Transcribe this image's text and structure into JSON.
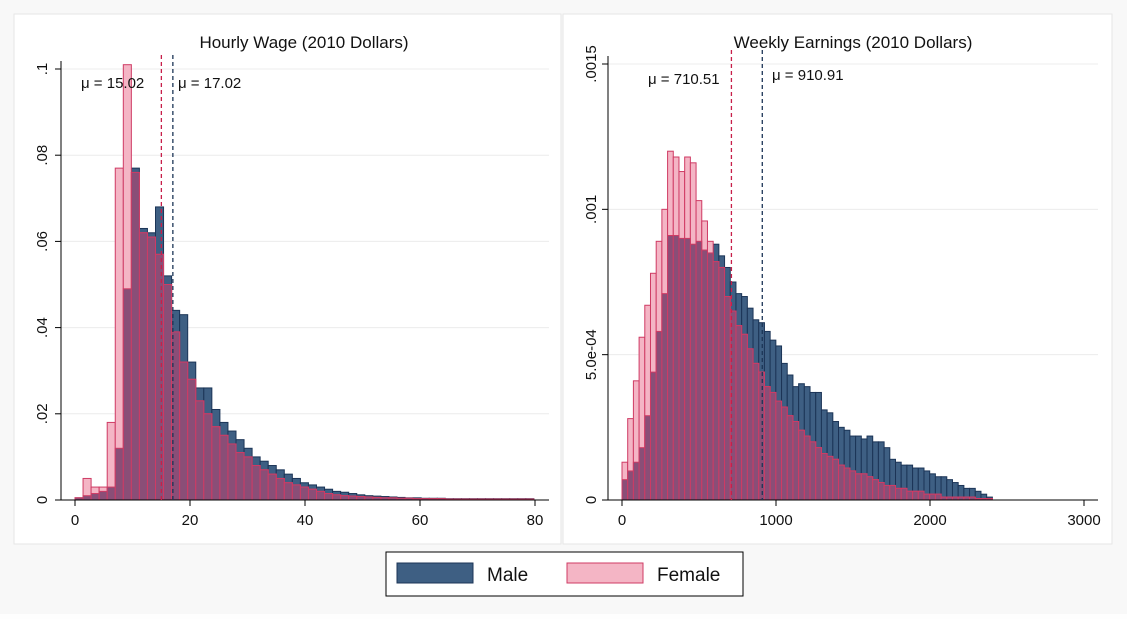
{
  "colors": {
    "male_fill": "#3e5f83",
    "male_stroke": "#1c3557",
    "female_fill": "#f4b5c5",
    "female_stroke": "#cf3b64",
    "overlap_fill": "#8a4e77",
    "male_mean_line": "#1c3557",
    "female_mean_line": "#c71f4a"
  },
  "legend": {
    "items": [
      {
        "key": "male",
        "label": "Male"
      },
      {
        "key": "female",
        "label": "Female"
      }
    ]
  },
  "chart_data": [
    {
      "type": "bar",
      "title": "Hourly Wage (2010 Dollars)",
      "xlabel": "",
      "ylabel": "",
      "xlim": [
        0,
        80
      ],
      "ylim": [
        0,
        0.1
      ],
      "x_ticks": [
        0,
        20,
        40,
        60,
        80
      ],
      "x_tick_labels": [
        "0",
        "20",
        "40",
        "60",
        "80"
      ],
      "y_ticks": [
        0,
        0.02,
        0.04,
        0.06,
        0.08,
        0.1
      ],
      "y_tick_labels": [
        "0",
        ".02",
        ".04",
        ".06",
        ".08",
        ".1"
      ],
      "bin_start": 0,
      "bin_width": 1.4,
      "series": [
        {
          "name": "Male",
          "values": [
            0.0005,
            0.001,
            0.0015,
            0.002,
            0.003,
            0.012,
            0.049,
            0.077,
            0.063,
            0.062,
            0.068,
            0.052,
            0.044,
            0.043,
            0.032,
            0.026,
            0.026,
            0.021,
            0.018,
            0.016,
            0.014,
            0.012,
            0.01,
            0.009,
            0.008,
            0.007,
            0.006,
            0.005,
            0.004,
            0.0035,
            0.003,
            0.0025,
            0.002,
            0.0018,
            0.0015,
            0.0012,
            0.001,
            0.0009,
            0.0008,
            0.0007,
            0.0006,
            0.0005,
            0.0005,
            0.0004,
            0.0004,
            0.0004,
            0.0003,
            0.0003,
            0.0003,
            0.0003,
            0.0003,
            0.0003,
            0.0003,
            0.0003,
            0.0003,
            0.0003,
            0.0003
          ]
        },
        {
          "name": "Female",
          "values": [
            0.0005,
            0.005,
            0.003,
            0.003,
            0.018,
            0.077,
            0.101,
            0.076,
            0.062,
            0.061,
            0.057,
            0.05,
            0.039,
            0.032,
            0.028,
            0.023,
            0.02,
            0.017,
            0.015,
            0.013,
            0.011,
            0.01,
            0.008,
            0.007,
            0.006,
            0.005,
            0.004,
            0.0035,
            0.003,
            0.0025,
            0.002,
            0.0015,
            0.0012,
            0.001,
            0.0009,
            0.0008,
            0.0007,
            0.0006,
            0.0005,
            0.0005,
            0.0004,
            0.0004,
            0.0003,
            0.0003,
            0.0003,
            0.0003,
            0.0002,
            0.0002,
            0.0002,
            0.0002,
            0.0002,
            0.0002,
            0.0002,
            0.0002,
            0.0002,
            0.0002,
            0.0002
          ]
        }
      ],
      "means": [
        {
          "series": "Female",
          "value": 15.02,
          "label": "μ =  15.02"
        },
        {
          "series": "Male",
          "value": 17.02,
          "label": "μ =  17.02"
        }
      ]
    },
    {
      "type": "bar",
      "title": "Weekly Earnings (2010 Dollars)",
      "xlabel": "",
      "ylabel": "",
      "xlim": [
        0,
        3000
      ],
      "ylim": [
        0,
        0.0015
      ],
      "x_ticks": [
        0,
        1000,
        2000,
        3000
      ],
      "x_tick_labels": [
        "0",
        "1000",
        "2000",
        "3000"
      ],
      "y_ticks": [
        0,
        0.0005,
        0.001,
        0.0015
      ],
      "y_tick_labels": [
        "0",
        "5.0e-04",
        ".001",
        ".0015"
      ],
      "bin_start": 0,
      "bin_width": 37,
      "series": [
        {
          "name": "Male",
          "values": [
            7e-05,
            0.0001,
            0.00013,
            0.00018,
            0.00029,
            0.00044,
            0.00058,
            0.00071,
            0.00091,
            0.00091,
            0.0009,
            0.0009,
            0.00088,
            0.00089,
            0.00086,
            0.00085,
            0.00088,
            0.00084,
            0.0008,
            0.00075,
            0.00071,
            0.0007,
            0.00066,
            0.00062,
            0.00061,
            0.00058,
            0.00055,
            0.00053,
            0.00047,
            0.00043,
            0.00039,
            0.0004,
            0.00039,
            0.00037,
            0.00037,
            0.00031,
            0.0003,
            0.00027,
            0.00025,
            0.00024,
            0.00022,
            0.00022,
            0.00021,
            0.00022,
            0.0002,
            0.0002,
            0.00018,
            0.00014,
            0.00013,
            0.00012,
            0.00012,
            0.00011,
            0.00011,
            0.0001,
            9e-05,
            8e-05,
            8e-05,
            7e-05,
            6e-05,
            5e-05,
            4e-05,
            4e-05,
            3e-05,
            2e-05,
            1e-05
          ]
        },
        {
          "name": "Female",
          "values": [
            0.00013,
            0.00028,
            0.00041,
            0.00056,
            0.00067,
            0.00078,
            0.00089,
            0.001,
            0.0012,
            0.00118,
            0.00113,
            0.00118,
            0.00116,
            0.00103,
            0.00096,
            0.00089,
            0.00082,
            0.0008,
            0.0007,
            0.00065,
            0.0006,
            0.00057,
            0.00052,
            0.00047,
            0.00044,
            0.00039,
            0.00037,
            0.00034,
            0.00032,
            0.00029,
            0.00027,
            0.00024,
            0.00022,
            0.0002,
            0.00018,
            0.00016,
            0.00015,
            0.00014,
            0.00012,
            0.00011,
            0.0001,
            9e-05,
            9e-05,
            8e-05,
            7e-05,
            6e-05,
            5e-05,
            5e-05,
            4e-05,
            4e-05,
            3e-05,
            3e-05,
            3e-05,
            2e-05,
            2e-05,
            2e-05,
            1e-05,
            1e-05,
            1e-05,
            1e-05,
            1e-05,
            1e-05,
            5e-06,
            5e-06,
            5e-06
          ]
        }
      ],
      "means": [
        {
          "series": "Female",
          "value": 710.51,
          "label": "μ =  710.51"
        },
        {
          "series": "Male",
          "value": 910.91,
          "label": "μ =  910.91"
        }
      ]
    }
  ]
}
